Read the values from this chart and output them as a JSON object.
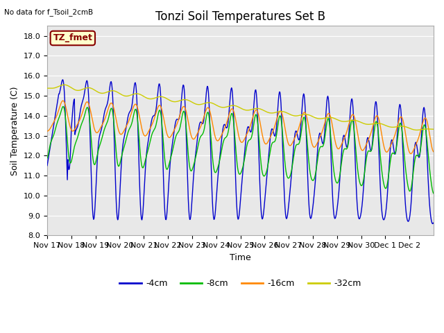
{
  "title": "Tonzi Soil Temperatures Set B",
  "subtitle": "No data for f_Tsoil_2cmB",
  "xlabel": "Time",
  "ylabel": "Soil Temperature (C)",
  "ylim": [
    8.0,
    18.5
  ],
  "yticks": [
    8.0,
    9.0,
    10.0,
    11.0,
    12.0,
    13.0,
    14.0,
    15.0,
    16.0,
    17.0,
    18.0
  ],
  "bg_color": "#e8e8e8",
  "legend_labels": [
    "-4cm",
    "-8cm",
    "-16cm",
    "-32cm"
  ],
  "series_colors": [
    "#0000cc",
    "#00bb00",
    "#ff8800",
    "#cccc00"
  ],
  "annotation_text": "TZ_fmet",
  "annotation_color": "#880000",
  "annotation_bg": "#ffffcc",
  "xtick_labels": [
    "Nov 17",
    "Nov 18",
    "Nov 19",
    "Nov 20",
    "Nov 21",
    "Nov 22",
    "Nov 23",
    "Nov 24",
    "Nov 25",
    "Nov 26",
    "Nov 27",
    "Nov 28",
    "Nov 29",
    "Nov 30",
    "Dec 1",
    "Dec 2"
  ],
  "title_fontsize": 12,
  "axis_fontsize": 9,
  "tick_fontsize": 8
}
